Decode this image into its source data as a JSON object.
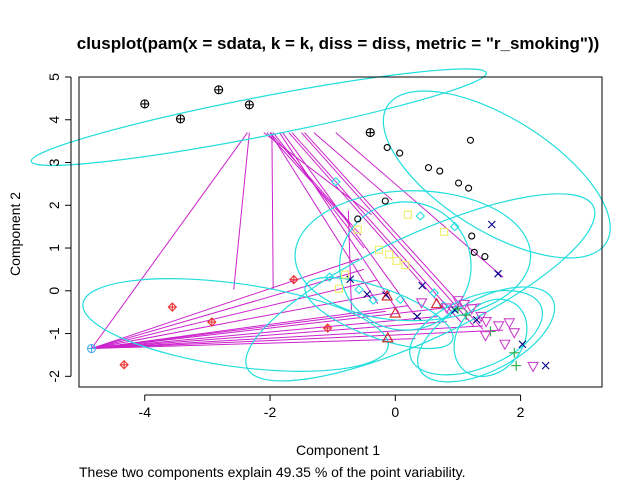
{
  "chart_data": {
    "type": "scatter",
    "title": "clusplot(pam(x = sdata, k = k, diss = diss, metric = \"r_smoking\"))",
    "xlabel": "Component 1",
    "ylabel": "Component 2",
    "subtitle": "These two components explain 49.35 % of the point variability.",
    "xlim": [
      -5.05,
      3.3
    ],
    "ylim": [
      -2.25,
      5.0
    ],
    "xticks": [
      "-4",
      "-2",
      "0",
      "2"
    ],
    "yticks": [
      "-2",
      "-1",
      "0",
      "1",
      "2",
      "3",
      "4",
      "5"
    ],
    "ellipse_color": "#22dddd",
    "line_color": "#cc22cc",
    "series": [
      {
        "color": "#000000",
        "symbol": "circle-plus",
        "points": [
          [
            -4.0,
            4.37
          ],
          [
            -3.43,
            4.02
          ],
          [
            -2.82,
            4.7
          ],
          [
            -2.33,
            4.35
          ],
          [
            -0.4,
            3.7
          ]
        ]
      },
      {
        "color": "#000000",
        "symbol": "circle",
        "points": [
          [
            -0.13,
            3.35
          ],
          [
            0.07,
            3.22
          ],
          [
            0.53,
            2.88
          ],
          [
            0.71,
            2.8
          ],
          [
            1.2,
            3.52
          ],
          [
            1.01,
            2.52
          ],
          [
            1.17,
            2.4
          ],
          [
            -0.6,
            1.68
          ],
          [
            -0.16,
            2.1
          ],
          [
            1.22,
            1.28
          ],
          [
            1.26,
            0.9
          ],
          [
            1.43,
            0.8
          ]
        ]
      },
      {
        "color": "#000088",
        "symbol": "x",
        "points": [
          [
            1.54,
            1.55
          ],
          [
            1.64,
            0.4
          ],
          [
            -0.72,
            0.27
          ],
          [
            -0.45,
            -0.08
          ],
          [
            -0.15,
            -0.1
          ],
          [
            0.35,
            -0.6
          ],
          [
            0.43,
            0.12
          ],
          [
            0.95,
            -0.45
          ],
          [
            1.3,
            -0.68
          ],
          [
            2.03,
            -1.25
          ],
          [
            2.4,
            -1.75
          ]
        ]
      },
      {
        "color": "#ee3333",
        "symbol": "diamond-plus",
        "points": [
          [
            -1.62,
            0.26
          ],
          [
            -3.56,
            -0.38
          ],
          [
            -2.93,
            -0.73
          ],
          [
            -4.33,
            -1.73
          ],
          [
            -1.08,
            -0.87
          ]
        ]
      },
      {
        "color": "#44aaee",
        "symbol": "circle-plus",
        "points": [
          [
            -4.85,
            -1.35
          ]
        ]
      },
      {
        "color": "#22dddd",
        "symbol": "diamond",
        "points": [
          [
            -0.95,
            2.55
          ],
          [
            0.4,
            1.75
          ],
          [
            0.95,
            1.5
          ],
          [
            -1.05,
            0.32
          ],
          [
            -0.58,
            0.03
          ],
          [
            -0.35,
            -0.22
          ],
          [
            0.08,
            -0.2
          ],
          [
            0.62,
            -0.05
          ],
          [
            0.77,
            -0.35
          ]
        ]
      },
      {
        "color": "#eeee66",
        "symbol": "square",
        "points": [
          [
            0.2,
            1.78
          ],
          [
            -0.6,
            1.43
          ],
          [
            0.78,
            1.38
          ],
          [
            -0.26,
            0.96
          ],
          [
            -0.1,
            0.85
          ],
          [
            0.02,
            0.7
          ],
          [
            0.16,
            0.6
          ],
          [
            -0.8,
            0.38
          ],
          [
            -0.9,
            0.05
          ]
        ]
      },
      {
        "color": "#cc2222",
        "symbol": "triangle",
        "points": [
          [
            -0.13,
            -0.12
          ],
          [
            0.0,
            -0.52
          ],
          [
            -0.12,
            -1.1
          ],
          [
            0.66,
            -0.3
          ]
        ]
      },
      {
        "color": "#22aa44",
        "symbol": "plus",
        "points": [
          [
            1.0,
            -0.42
          ],
          [
            1.13,
            -0.57
          ],
          [
            1.52,
            -0.95
          ],
          [
            1.9,
            -1.45
          ],
          [
            1.93,
            -1.75
          ]
        ]
      },
      {
        "color": "#cc44cc",
        "symbol": "triangle-down",
        "points": [
          [
            0.42,
            -0.28
          ],
          [
            0.82,
            -0.4
          ],
          [
            1.0,
            -0.23
          ],
          [
            1.1,
            -0.32
          ],
          [
            1.22,
            -0.42
          ],
          [
            1.37,
            -0.6
          ],
          [
            1.45,
            -0.72
          ],
          [
            1.65,
            -0.82
          ],
          [
            1.82,
            -0.75
          ],
          [
            1.9,
            -0.98
          ],
          [
            2.2,
            -1.77
          ],
          [
            1.44,
            -1.05
          ],
          [
            1.75,
            -1.25
          ]
        ]
      }
    ],
    "ellipses": [
      {
        "center": [
          -2.18,
          4.06
        ],
        "rx": 3.7,
        "ry": 0.46,
        "angle": -11
      },
      {
        "center": [
          1.62,
          2.72
        ],
        "rx": 2.06,
        "ry": 1.32,
        "angle": 32
      },
      {
        "center": [
          0.28,
          0.82
        ],
        "rx": 1.88,
        "ry": 1.52,
        "angle": 0
      },
      {
        "center": [
          0.4,
          0.08
        ],
        "rx": 3.05,
        "ry": 1.22,
        "angle": -25
      },
      {
        "center": [
          -2.55,
          -0.8
        ],
        "rx": 2.46,
        "ry": 0.97,
        "angle": 8
      },
      {
        "center": [
          -0.26,
          -0.52
        ],
        "rx": 1.25,
        "ry": 0.58,
        "angle": 20
      },
      {
        "center": [
          0.16,
          0.58
        ],
        "rx": 1.05,
        "ry": 1.5,
        "angle": 0
      },
      {
        "center": [
          1.45,
          -1.02
        ],
        "rx": 1.2,
        "ry": 0.84,
        "angle": -28
      },
      {
        "center": [
          1.52,
          -1.1
        ],
        "rx": 0.52,
        "ry": 0.98,
        "angle": 38
      },
      {
        "center": [
          1.29,
          -0.98
        ],
        "rx": 1.12,
        "ry": 0.83,
        "angle": -22
      }
    ],
    "connecting_lines": [
      [
        [
          -2.33,
          3.7
        ],
        [
          -2.58,
          0.03
        ]
      ],
      [
        [
          -2.36,
          3.7
        ],
        [
          -4.85,
          -1.35
        ]
      ],
      [
        [
          -1.97,
          3.7
        ],
        [
          -1.95,
          0.03
        ]
      ],
      [
        [
          -2.1,
          3.7
        ],
        [
          -0.38,
          1.78
        ]
      ],
      [
        [
          -2.05,
          3.7
        ],
        [
          -0.72,
          1.55
        ]
      ],
      [
        [
          -2.0,
          3.7
        ],
        [
          -0.55,
          1.3
        ]
      ],
      [
        [
          -1.95,
          3.7
        ],
        [
          -0.5,
          1.0
        ]
      ],
      [
        [
          -2.0,
          3.7
        ],
        [
          -0.28,
          -0.3
        ]
      ],
      [
        [
          -1.85,
          3.7
        ],
        [
          0.05,
          -0.5
        ]
      ],
      [
        [
          -1.8,
          3.7
        ],
        [
          0.3,
          -0.55
        ]
      ],
      [
        [
          -1.7,
          3.7
        ],
        [
          0.9,
          -0.62
        ]
      ],
      [
        [
          -1.65,
          3.7
        ],
        [
          1.06,
          -0.75
        ]
      ],
      [
        [
          -1.5,
          3.7
        ],
        [
          1.25,
          -0.82
        ]
      ],
      [
        [
          -1.45,
          3.7
        ],
        [
          1.4,
          -0.9
        ]
      ],
      [
        [
          -1.3,
          3.7
        ],
        [
          -0.05,
          2.12
        ]
      ],
      [
        [
          -0.95,
          3.7
        ],
        [
          1.72,
          0.32
        ]
      ],
      [
        [
          -0.75,
          1.88
        ],
        [
          -0.7,
          -0.45
        ]
      ],
      [
        [
          -4.85,
          -1.35
        ],
        [
          -0.58,
          0.75
        ]
      ],
      [
        [
          -4.85,
          -1.35
        ],
        [
          -0.5,
          0.5
        ]
      ],
      [
        [
          -4.85,
          -1.35
        ],
        [
          -0.3,
          0.25
        ]
      ],
      [
        [
          -4.85,
          -1.35
        ],
        [
          -0.15,
          -0.05
        ]
      ],
      [
        [
          -4.85,
          -1.35
        ],
        [
          0.2,
          -0.35
        ]
      ],
      [
        [
          -4.85,
          -1.35
        ],
        [
          1.38,
          -0.3
        ]
      ],
      [
        [
          -4.85,
          -1.35
        ],
        [
          0.68,
          -0.6
        ]
      ],
      [
        [
          -4.85,
          -1.35
        ],
        [
          1.4,
          -0.82
        ]
      ],
      [
        [
          -4.85,
          -1.35
        ],
        [
          0.32,
          -1.12
        ]
      ],
      [
        [
          -4.85,
          -1.35
        ],
        [
          0.82,
          -0.72
        ]
      ],
      [
        [
          -4.85,
          -1.35
        ],
        [
          -0.15,
          -0.48
        ]
      ],
      [
        [
          -4.85,
          -1.35
        ],
        [
          1.72,
          -0.92
        ]
      ]
    ]
  }
}
